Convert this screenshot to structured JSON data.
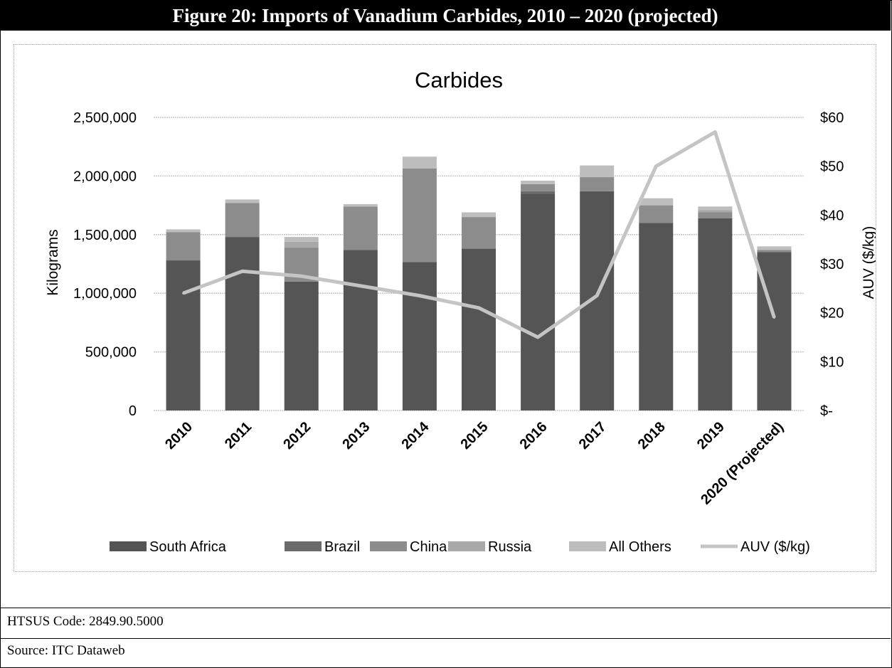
{
  "figure_title": "Figure 20: Imports of Vanadium Carbides, 2010 – 2020 (projected)",
  "htsus_code": "HTSUS Code: 2849.90.5000",
  "source": "Source: ITC Dataweb",
  "chart_data": {
    "type": "bar",
    "stacked": true,
    "title": "Carbides",
    "ylabel": "Kilograms",
    "y2label": "AUV ($/kg)",
    "categories": [
      "2010",
      "2011",
      "2012",
      "2013",
      "2014",
      "2015",
      "2016",
      "2017",
      "2018",
      "2019",
      "2020 (Projected)"
    ],
    "ylim": [
      0,
      2500000
    ],
    "y2lim": [
      0,
      60
    ],
    "yticks": [
      "0",
      "500,000",
      "1,000,000",
      "1,500,000",
      "2,000,000",
      "2,500,000"
    ],
    "y2ticks": [
      "$-",
      "$10",
      "$20",
      "$30",
      "$40",
      "$50",
      "$60"
    ],
    "grid": true,
    "legend_position": "bottom",
    "series": [
      {
        "name": "South Africa",
        "color": "#555555",
        "values": [
          1280000,
          1480000,
          1100000,
          1370000,
          1265000,
          1380000,
          1850000,
          1870000,
          1600000,
          1640000,
          1350000
        ]
      },
      {
        "name": "Brazil",
        "color": "#6a6a6a",
        "values": [
          0,
          0,
          0,
          0,
          0,
          0,
          20000,
          0,
          0,
          0,
          0
        ]
      },
      {
        "name": "China",
        "color": "#8c8c8c",
        "values": [
          240000,
          290000,
          290000,
          370000,
          800000,
          270000,
          60000,
          120000,
          150000,
          50000,
          20000
        ]
      },
      {
        "name": "Russia",
        "color": "#a8a8a8",
        "values": [
          0,
          0,
          50000,
          0,
          0,
          0,
          0,
          0,
          0,
          20000,
          0
        ]
      },
      {
        "name": "All Others",
        "color": "#bdbdbd",
        "values": [
          25000,
          30000,
          40000,
          20000,
          100000,
          40000,
          30000,
          100000,
          60000,
          30000,
          30000
        ]
      }
    ],
    "line_series": {
      "name": "AUV ($/kg)",
      "color": "#c4c4c4",
      "axis": "right",
      "values": [
        24,
        28.5,
        27.5,
        25.5,
        23.5,
        21,
        15,
        23.5,
        50,
        57,
        19
      ]
    }
  }
}
